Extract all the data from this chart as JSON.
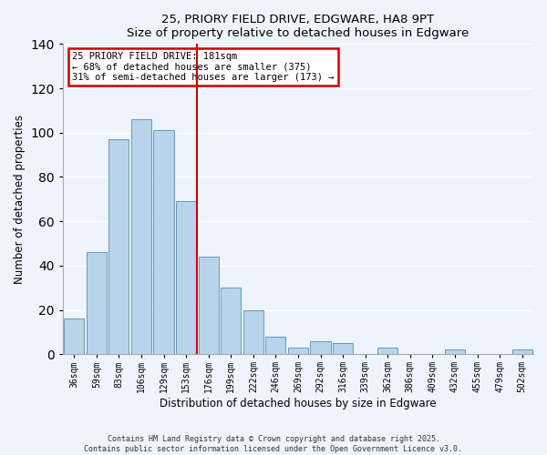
{
  "title": "25, PRIORY FIELD DRIVE, EDGWARE, HA8 9PT",
  "subtitle": "Size of property relative to detached houses in Edgware",
  "xlabel": "Distribution of detached houses by size in Edgware",
  "ylabel": "Number of detached properties",
  "bar_labels": [
    "36sqm",
    "59sqm",
    "83sqm",
    "106sqm",
    "129sqm",
    "153sqm",
    "176sqm",
    "199sqm",
    "222sqm",
    "246sqm",
    "269sqm",
    "292sqm",
    "316sqm",
    "339sqm",
    "362sqm",
    "386sqm",
    "409sqm",
    "432sqm",
    "455sqm",
    "479sqm",
    "502sqm"
  ],
  "bar_values": [
    16,
    46,
    97,
    106,
    101,
    69,
    44,
    30,
    20,
    8,
    3,
    6,
    5,
    0,
    3,
    0,
    0,
    2,
    0,
    0,
    2
  ],
  "bar_color": "#b8d4ea",
  "bar_edge_color": "#6699bb",
  "vline_x": 5.5,
  "vline_color": "#cc0000",
  "ylim": [
    0,
    140
  ],
  "yticks": [
    0,
    20,
    40,
    60,
    80,
    100,
    120,
    140
  ],
  "annotation_title": "25 PRIORY FIELD DRIVE: 181sqm",
  "annotation_line1": "← 68% of detached houses are smaller (375)",
  "annotation_line2": "31% of semi-detached houses are larger (173) →",
  "annotation_box_color": "#ffffff",
  "annotation_box_edge": "#cc0000",
  "footer_line1": "Contains HM Land Registry data © Crown copyright and database right 2025.",
  "footer_line2": "Contains public sector information licensed under the Open Government Licence v3.0.",
  "background_color": "#eef4fb",
  "grid_color": "#ffffff"
}
